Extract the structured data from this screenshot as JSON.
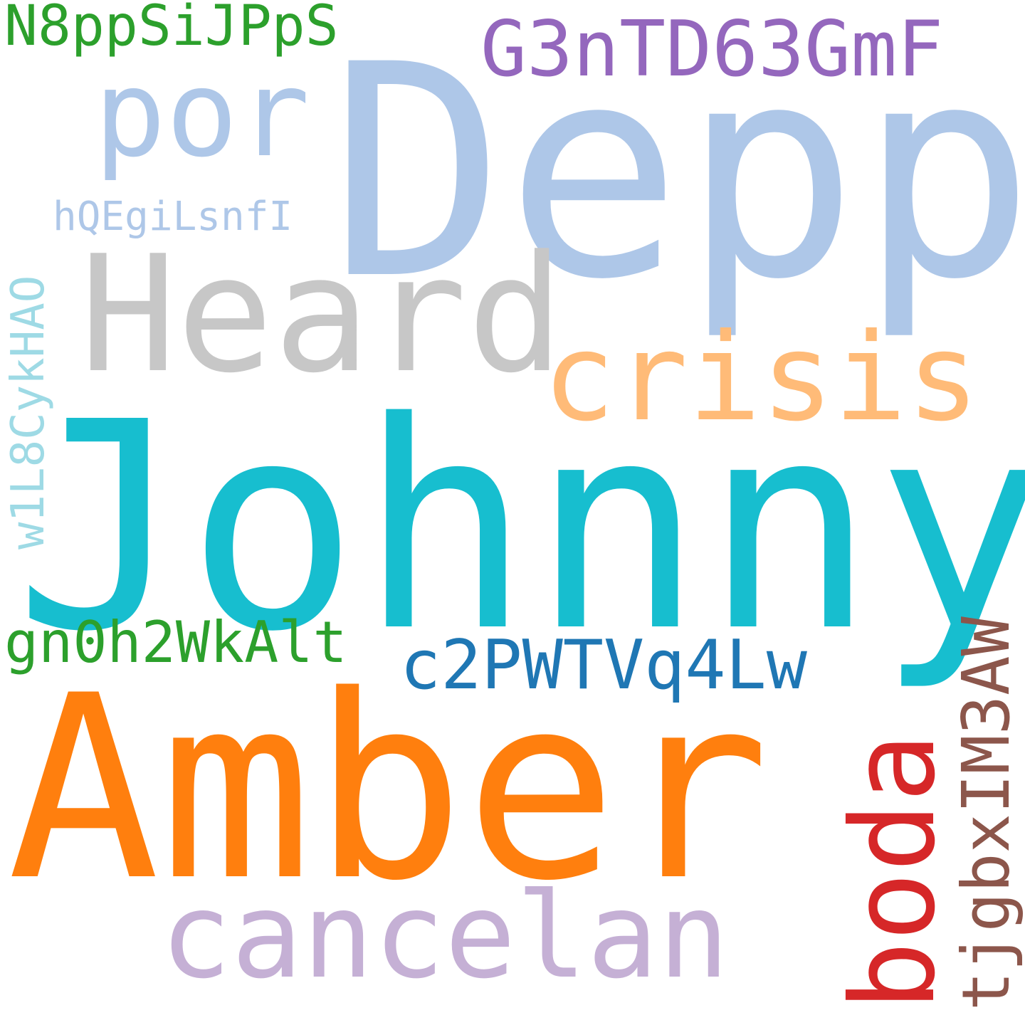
{
  "cloud": {
    "background": "#ffffff",
    "words": {
      "depp": {
        "text": "Depp",
        "color": "#aec7e8",
        "orientation": "horizontal"
      },
      "johnny": {
        "text": "Johnny",
        "color": "#17becf",
        "orientation": "horizontal"
      },
      "amber": {
        "text": "Amber",
        "color": "#ff7f0e",
        "orientation": "horizontal"
      },
      "heard": {
        "text": "Heard",
        "color": "#c7c7c7",
        "orientation": "horizontal"
      },
      "crisis": {
        "text": "crisis",
        "color": "#ffbb78",
        "orientation": "horizontal"
      },
      "cancelan": {
        "text": "cancelan",
        "color": "#c5b0d5",
        "orientation": "horizontal"
      },
      "por": {
        "text": "por",
        "color": "#aec7e8",
        "orientation": "horizontal"
      },
      "boda": {
        "text": "boda",
        "color": "#d62728",
        "orientation": "vertical"
      },
      "g3n": {
        "text": "G3nTD63GmF",
        "color": "#9467bd",
        "orientation": "horizontal"
      },
      "c2p": {
        "text": "c2PWTVq4Lw",
        "color": "#1f77b4",
        "orientation": "horizontal"
      },
      "tjg": {
        "text": "tjgbxIM3AW",
        "color": "#8c564b",
        "orientation": "vertical"
      },
      "gn0": {
        "text": "gn0h2WkAlt",
        "color": "#2ca02c",
        "orientation": "horizontal"
      },
      "n8p": {
        "text": "N8ppSiJPpS",
        "color": "#2ca02c",
        "orientation": "horizontal"
      },
      "w1l": {
        "text": "w1L8CykHAO",
        "color": "#9edae5",
        "orientation": "vertical"
      },
      "hqe": {
        "text": "hQEgiLsnfI",
        "color": "#aec7e8",
        "orientation": "horizontal"
      }
    }
  }
}
